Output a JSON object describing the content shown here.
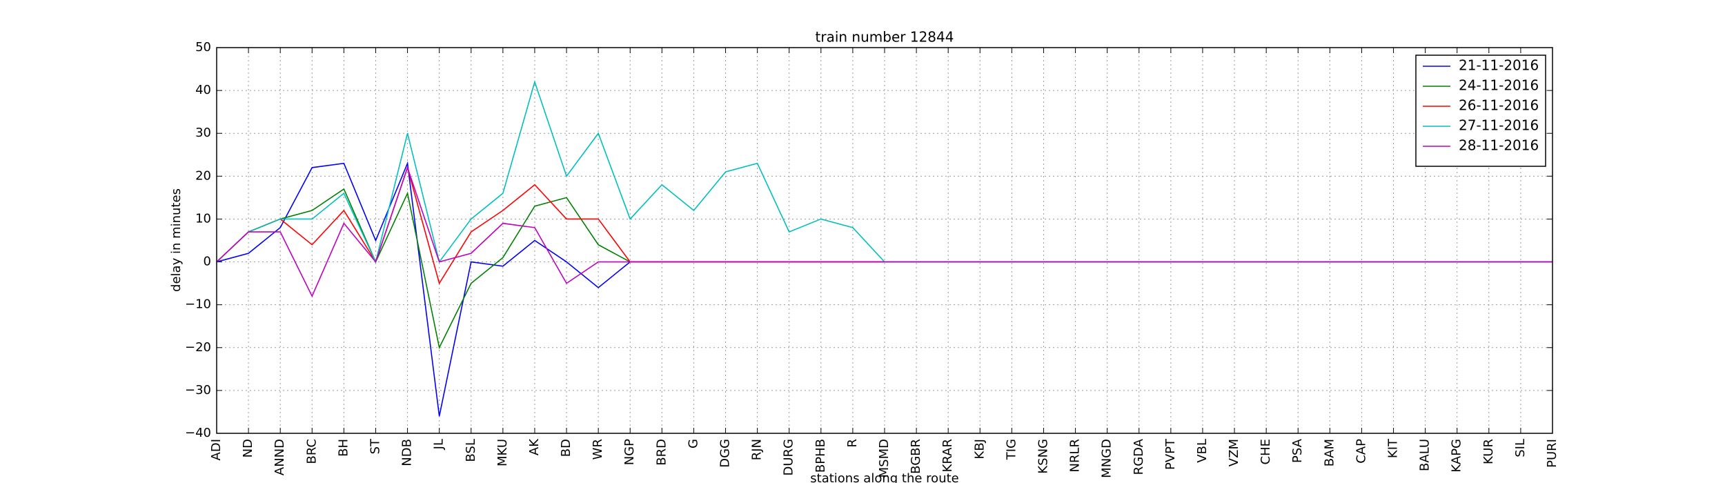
{
  "chart_data": {
    "type": "line",
    "title": "train number 12844",
    "x_label": "stations along the route",
    "y_label": "delay in minutes",
    "categories": [
      "ADI",
      "ND",
      "ANND",
      "BRC",
      "BH",
      "ST",
      "NDB",
      "JL",
      "BSL",
      "MKU",
      "AK",
      "BD",
      "WR",
      "NGP",
      "BRD",
      "G",
      "DGG",
      "RJN",
      "DURG",
      "BPHB",
      "R",
      "MSMD",
      "BGBR",
      "KRAR",
      "KBJ",
      "TIG",
      "KSNG",
      "NRLR",
      "MNGD",
      "RGDA",
      "PVPT",
      "VBL",
      "VZM",
      "CHE",
      "PSA",
      "BAM",
      "CAP",
      "KIT",
      "BALU",
      "KAPG",
      "KUR",
      "SIL",
      "PURI"
    ],
    "series": [
      {
        "name": "21-11-2016",
        "color": "#0000ff",
        "values": [
          0,
          2,
          8,
          22,
          23,
          5,
          23,
          -36,
          0,
          -1,
          5,
          0,
          -6,
          0,
          0,
          0,
          0,
          0,
          0,
          0,
          0,
          0,
          0,
          0,
          0,
          0,
          0,
          0,
          0,
          0,
          0,
          0,
          0,
          0,
          0,
          0,
          0,
          0,
          0,
          0,
          0,
          0,
          0
        ]
      },
      {
        "name": "24-11-2016",
        "color": "#008000",
        "values": [
          0,
          7,
          10,
          12,
          17,
          0,
          16,
          -20,
          -5,
          1,
          13,
          15,
          4,
          0,
          0,
          0,
          0,
          0,
          0,
          0,
          0,
          0,
          0,
          0,
          0,
          0,
          0,
          0,
          0,
          0,
          0,
          0,
          0,
          0,
          0,
          0,
          0,
          0,
          0,
          0,
          0,
          0,
          0
        ]
      },
      {
        "name": "26-11-2016",
        "color": "#ff0000",
        "values": [
          0,
          7,
          10,
          4,
          12,
          0,
          22,
          -5,
          7,
          12,
          18,
          10,
          10,
          0,
          0,
          0,
          0,
          0,
          0,
          0,
          0,
          0,
          0,
          0,
          0,
          0,
          0,
          0,
          0,
          0,
          0,
          0,
          0,
          0,
          0,
          0,
          0,
          0,
          0,
          0,
          0,
          0,
          0
        ]
      },
      {
        "name": "27-11-2016",
        "color": "#00bfbf",
        "values": [
          0,
          7,
          10,
          10,
          16,
          0,
          30,
          0,
          10,
          16,
          42,
          20,
          30,
          10,
          18,
          12,
          21,
          23,
          7,
          10,
          8,
          0,
          0,
          0,
          0,
          0,
          0,
          0,
          0,
          0,
          0,
          0,
          0,
          0,
          0,
          0,
          0,
          0,
          0,
          0,
          0,
          0,
          0
        ]
      },
      {
        "name": "28-11-2016",
        "color": "#bf00bf",
        "values": [
          0,
          7,
          7,
          -8,
          9,
          0,
          22,
          0,
          2,
          9,
          8,
          -5,
          0,
          0,
          0,
          0,
          0,
          0,
          0,
          0,
          0,
          0,
          0,
          0,
          0,
          0,
          0,
          0,
          0,
          0,
          0,
          0,
          0,
          0,
          0,
          0,
          0,
          0,
          0,
          0,
          0,
          0,
          0
        ]
      }
    ],
    "ylim": [
      -40,
      50
    ],
    "yticks": [
      {
        "value": -40,
        "label": "−40"
      },
      {
        "value": -30,
        "label": "−30"
      },
      {
        "value": -20,
        "label": "−20"
      },
      {
        "value": -10,
        "label": "−10"
      },
      0,
      10,
      20,
      30,
      40,
      50
    ],
    "grid": true,
    "legend": "upper right"
  }
}
